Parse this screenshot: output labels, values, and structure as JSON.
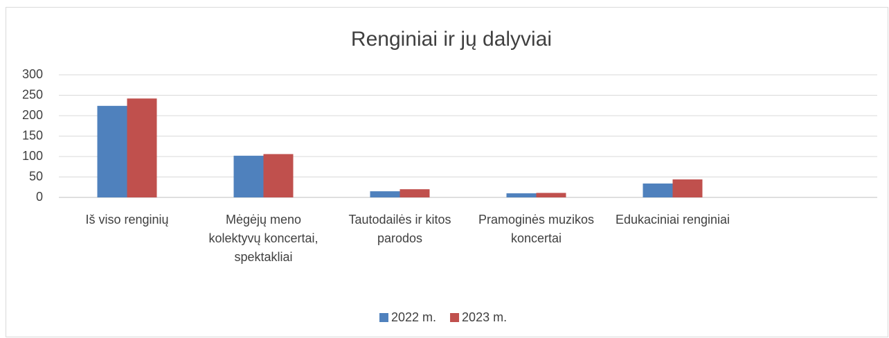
{
  "chart_data": {
    "type": "bar",
    "title": "Renginiai ir jų dalyviai",
    "categories": [
      "Iš viso renginių",
      "Mėgėjų meno kolektyvų koncertai, spektakliai",
      "Tautodailės ir kitos parodos",
      "Pramoginės muzikos koncertai",
      "Edukaciniai renginiai",
      null
    ],
    "series": [
      {
        "name": "2022 m.",
        "color": "#4f81bd",
        "values": [
          224,
          102,
          15,
          10,
          34,
          null
        ]
      },
      {
        "name": "2023 m.",
        "color": "#c0504d",
        "values": [
          242,
          106,
          20,
          11,
          44,
          null
        ]
      }
    ],
    "ylim": [
      0,
      300
    ],
    "yticks": [
      0,
      50,
      100,
      150,
      200,
      250,
      300
    ],
    "grid": true,
    "legend": "bottom"
  }
}
